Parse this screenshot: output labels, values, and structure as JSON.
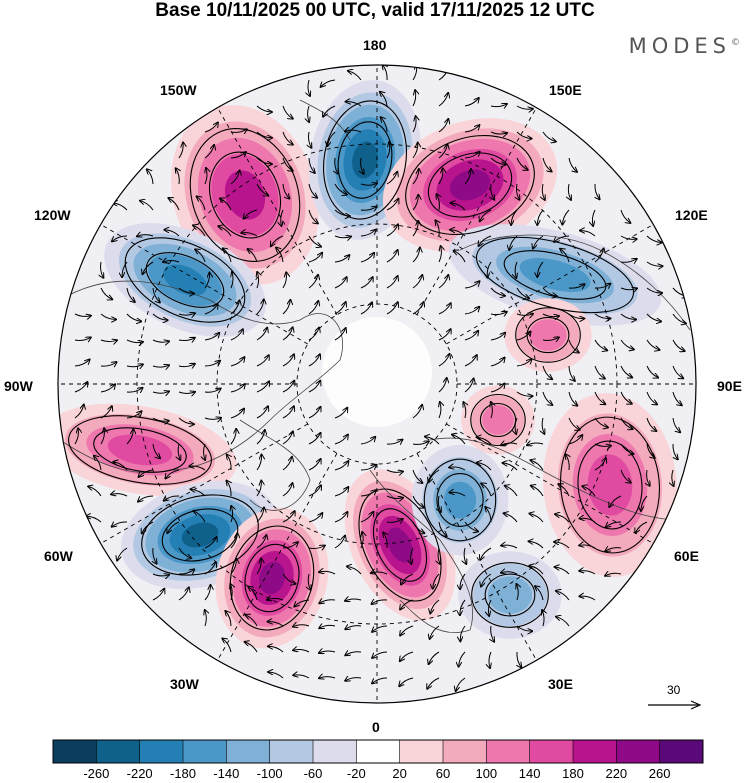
{
  "header": {
    "title": "Base 10/11/2025 00 UTC, valid 17/11/2025 12 UTC",
    "brand": "MODES",
    "brand_mark": "©"
  },
  "longitude_labels": {
    "top": "180",
    "bottom": "0",
    "left": "90W",
    "right": "90E",
    "upper_left": "150W",
    "upper_left_2": "120W",
    "lower_left": "60W",
    "lower_left_2": "30W",
    "upper_right": "150E",
    "upper_right_2": "120E",
    "lower_right": "60E",
    "lower_right_2": "30E"
  },
  "reference_vector": {
    "value": "30"
  },
  "colorbar": {
    "ticks": [
      "-260",
      "-220",
      "-180",
      "-140",
      "-100",
      "-60",
      "-20",
      "20",
      "60",
      "100",
      "140",
      "180",
      "220",
      "260"
    ],
    "colors": [
      "#0b3d5e",
      "#10608c",
      "#2480b4",
      "#4a97c8",
      "#7fb0d6",
      "#b3c8e2",
      "#dcdcec",
      "#ffffff",
      "#f9d4d8",
      "#f3aabd",
      "#ee78ad",
      "#e04aa0",
      "#b8148e",
      "#8e0a86",
      "#5a0a78"
    ]
  },
  "map_data": {
    "projection": "north-polar-stereographic",
    "field": "geopotential height anomaly",
    "units_hint": "m",
    "anomaly_centres": [
      {
        "name": "north-pacific-high-west",
        "sign": "+",
        "value": 180
      },
      {
        "name": "aleutian-low",
        "sign": "-",
        "value": -220
      },
      {
        "name": "kamchatka-high",
        "sign": "+",
        "value": 220
      },
      {
        "name": "alaska-low",
        "sign": "-",
        "value": -180
      },
      {
        "name": "siberia-low",
        "sign": "-",
        "value": -140
      },
      {
        "name": "central-asia-high",
        "sign": "+",
        "value": 100
      },
      {
        "name": "ural-high",
        "sign": "+",
        "value": 100
      },
      {
        "name": "west-asia-high",
        "sign": "+",
        "value": 140
      },
      {
        "name": "canada-high",
        "sign": "+",
        "value": 140
      },
      {
        "name": "atlantic-low-west",
        "sign": "-",
        "value": -220
      },
      {
        "name": "atlantic-high",
        "sign": "+",
        "value": 220
      },
      {
        "name": "europe-high",
        "sign": "+",
        "value": 220
      },
      {
        "name": "scandinavia-low",
        "sign": "-",
        "value": -140
      },
      {
        "name": "mediterranean-low",
        "sign": "-",
        "value": -100
      }
    ]
  }
}
